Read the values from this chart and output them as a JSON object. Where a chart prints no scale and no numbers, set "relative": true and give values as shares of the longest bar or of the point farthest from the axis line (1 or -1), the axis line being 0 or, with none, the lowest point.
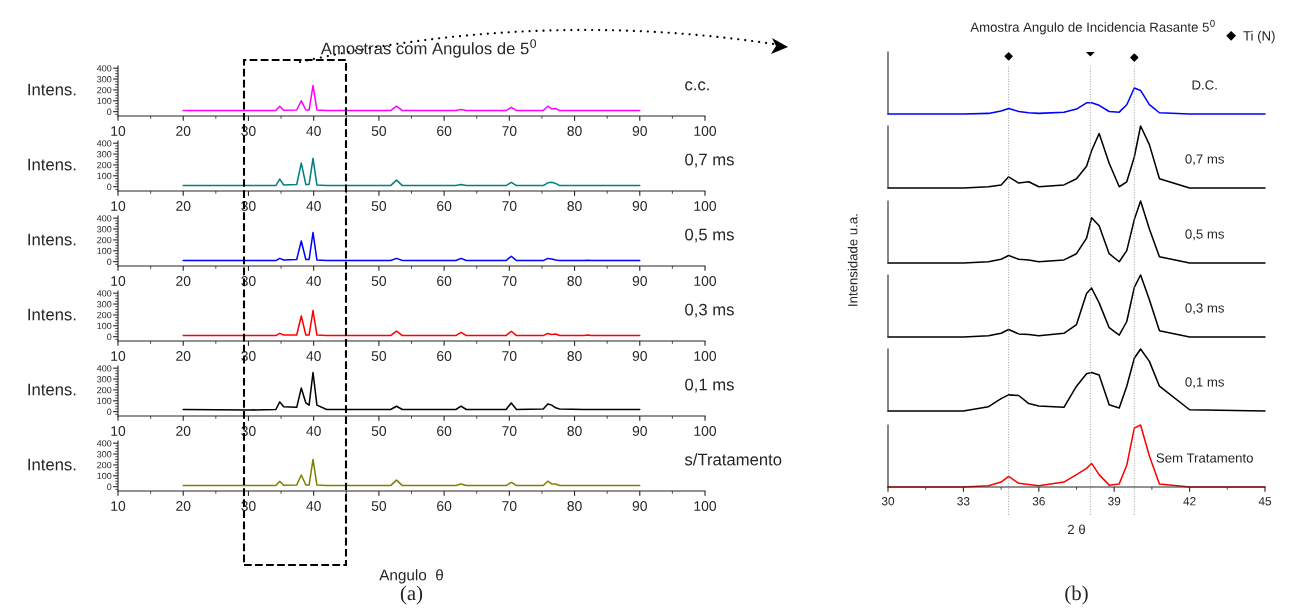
{
  "chart_data": [
    {
      "type": "line",
      "title": "Amostras com Angulos de 5$^{0}$",
      "ylabel": "Intens.",
      "xlim": [
        10,
        100
      ],
      "xticks": [
        10,
        20,
        30,
        40,
        50,
        60,
        70,
        80,
        90,
        100
      ],
      "ylim": [
        -40,
        420
      ],
      "yticks": [
        0,
        100,
        200,
        300,
        400
      ],
      "x": [
        20,
        30,
        34.2,
        34.8,
        35.4,
        37.4,
        38.1,
        38.8,
        39.3,
        39.9,
        40.5,
        42,
        51.8,
        52.7,
        53.6,
        61.8,
        62.6,
        63.4,
        69.5,
        70.3,
        71.1,
        75.2,
        75.9,
        76.5,
        77.1,
        77.7,
        81.4,
        82,
        82.6,
        90
      ],
      "series": [
        {
          "name": "c.c.",
          "color": "#ff00ff",
          "values": [
            10,
            10,
            10,
            50,
            12,
            15,
            100,
            15,
            15,
            240,
            15,
            10,
            10,
            50,
            10,
            10,
            20,
            10,
            10,
            40,
            10,
            10,
            50,
            25,
            30,
            10,
            10,
            10,
            10,
            10
          ]
        }
      ]
    },
    {
      "type": "line",
      "ylabel": "Intens.",
      "xlim": [
        10,
        100
      ],
      "xticks": [
        10,
        20,
        30,
        40,
        50,
        60,
        70,
        80,
        90,
        100
      ],
      "ylim": [
        -40,
        420
      ],
      "yticks": [
        0,
        100,
        200,
        300,
        400
      ],
      "x": [
        20,
        30,
        34.2,
        34.8,
        35.4,
        37.4,
        38.1,
        38.8,
        39.3,
        39.9,
        40.5,
        42,
        51.8,
        52.7,
        53.6,
        61.8,
        62.6,
        63.4,
        69.5,
        70.3,
        71.1,
        75.2,
        75.9,
        76.5,
        77.1,
        77.7,
        81.4,
        82,
        82.6,
        90
      ],
      "series": [
        {
          "name": "0,7 ms",
          "color": "#008080",
          "values": [
            10,
            10,
            10,
            70,
            15,
            20,
            217,
            20,
            20,
            260,
            15,
            10,
            10,
            60,
            10,
            10,
            20,
            10,
            10,
            40,
            10,
            10,
            35,
            40,
            30,
            10,
            10,
            10,
            10,
            10
          ]
        }
      ]
    },
    {
      "type": "line",
      "ylabel": "Intens.",
      "xlim": [
        10,
        100
      ],
      "xticks": [
        10,
        20,
        30,
        40,
        50,
        60,
        70,
        80,
        90,
        100
      ],
      "ylim": [
        -40,
        420
      ],
      "yticks": [
        0,
        100,
        200,
        300,
        400
      ],
      "x": [
        20,
        30,
        34.2,
        34.8,
        35.4,
        37.4,
        38.1,
        38.8,
        39.3,
        39.9,
        40.5,
        42,
        51.8,
        52.7,
        53.6,
        61.8,
        62.6,
        63.4,
        69.5,
        70.3,
        71.1,
        75.2,
        75.9,
        76.5,
        77.1,
        77.7,
        81.4,
        82,
        82.6,
        90
      ],
      "series": [
        {
          "name": "0,5 ms",
          "color": "#0000ff",
          "values": [
            10,
            10,
            10,
            30,
            15,
            20,
            190,
            20,
            20,
            267,
            15,
            10,
            10,
            30,
            10,
            10,
            30,
            10,
            10,
            50,
            10,
            10,
            30,
            25,
            15,
            10,
            10,
            12,
            10,
            10
          ]
        }
      ]
    },
    {
      "type": "line",
      "ylabel": "Intens.",
      "xlim": [
        10,
        100
      ],
      "xticks": [
        10,
        20,
        30,
        40,
        50,
        60,
        70,
        80,
        90,
        100
      ],
      "ylim": [
        -40,
        420
      ],
      "yticks": [
        0,
        100,
        200,
        300,
        400
      ],
      "x": [
        20,
        30,
        34.2,
        34.8,
        35.4,
        37.4,
        38.1,
        38.8,
        39.3,
        39.9,
        40.5,
        42,
        51.8,
        52.7,
        53.6,
        61.8,
        62.6,
        63.4,
        69.5,
        70.3,
        71.1,
        75.2,
        75.9,
        76.5,
        77.1,
        77.7,
        81.4,
        82,
        82.6,
        90
      ],
      "series": [
        {
          "name": "0,3 ms",
          "color": "#ff0000",
          "values": [
            10,
            10,
            10,
            30,
            15,
            15,
            190,
            15,
            15,
            240,
            15,
            10,
            10,
            50,
            10,
            10,
            40,
            10,
            10,
            50,
            10,
            10,
            30,
            20,
            25,
            10,
            10,
            15,
            10,
            10
          ]
        }
      ]
    },
    {
      "type": "line",
      "ylabel": "Intens.",
      "xlim": [
        10,
        100
      ],
      "xticks": [
        10,
        20,
        30,
        40,
        50,
        60,
        70,
        80,
        90,
        100
      ],
      "ylim": [
        -40,
        420
      ],
      "yticks": [
        0,
        100,
        200,
        300,
        400
      ],
      "x": [
        20,
        30,
        34.2,
        34.8,
        35.4,
        37.4,
        38.1,
        38.8,
        39.3,
        39.9,
        40.5,
        42,
        51.8,
        52.7,
        53.6,
        61.8,
        62.6,
        63.4,
        69.5,
        70.3,
        71.1,
        75.2,
        75.9,
        76.5,
        77.1,
        77.7,
        81.4,
        82,
        82.6,
        90
      ],
      "series": [
        {
          "name": "0,1 ms",
          "color": "#000000",
          "values": [
            20,
            15,
            20,
            90,
            45,
            40,
            217,
            80,
            60,
            360,
            60,
            20,
            20,
            50,
            20,
            20,
            50,
            20,
            20,
            80,
            20,
            25,
            70,
            60,
            35,
            25,
            20,
            20,
            20,
            20
          ]
        }
      ]
    },
    {
      "type": "line",
      "ylabel": "Intens.",
      "xlabel": "Angulo  θ",
      "xlim": [
        10,
        100
      ],
      "xticks": [
        10,
        20,
        30,
        40,
        50,
        60,
        70,
        80,
        90,
        100
      ],
      "ylim": [
        -40,
        420
      ],
      "yticks": [
        0,
        100,
        200,
        300,
        400
      ],
      "annotations": [
        "(a)"
      ],
      "x": [
        20,
        30,
        34.2,
        34.8,
        35.4,
        37.4,
        38.1,
        38.8,
        39.3,
        39.9,
        40.5,
        42,
        51.8,
        52.7,
        53.6,
        61.8,
        62.6,
        63.4,
        69.5,
        70.3,
        71.1,
        75.2,
        75.9,
        76.5,
        77.1,
        77.7,
        81.4,
        82,
        82.6,
        90
      ],
      "series": [
        {
          "name": "s/Tratamento",
          "color": "#808000",
          "values": [
            10,
            10,
            10,
            50,
            12,
            15,
            107,
            15,
            15,
            250,
            15,
            10,
            10,
            60,
            10,
            10,
            25,
            10,
            10,
            40,
            10,
            10,
            50,
            25,
            25,
            10,
            10,
            10,
            10,
            10
          ]
        }
      ]
    },
    {
      "type": "line",
      "title": "Amostra Angulo de Incidencia Rasante 5$^{0}$",
      "relative": true,
      "tick_labels": false,
      "xlim": [
        30,
        45
      ],
      "legend": "top right",
      "x": [
        30,
        33,
        34.0,
        34.5,
        34.8,
        35.2,
        35.6,
        36.0,
        37.0,
        37.5,
        37.9,
        38.1,
        38.4,
        38.8,
        39.2,
        39.5,
        39.8,
        40.05,
        40.4,
        40.8,
        42,
        45
      ],
      "series": [
        {
          "name": "D.C.",
          "color": "#0000ff",
          "values": [
            0,
            0,
            0.01,
            0.05,
            0.09,
            0.04,
            0.02,
            0.01,
            0.03,
            0.08,
            0.18,
            0.18,
            0.14,
            0.04,
            0.03,
            0.15,
            0.42,
            0.38,
            0.15,
            0.02,
            0,
            0
          ]
        },
        {
          "name": "Ti (N)",
          "type": "scatter",
          "marker": "diamond",
          "color": "#000000",
          "x": [
            34.8,
            38.05,
            39.8
          ],
          "values": [
            0.93,
            1,
            0.91
          ]
        }
      ]
    },
    {
      "type": "line",
      "relative": true,
      "tick_labels": false,
      "xlim": [
        30,
        45
      ],
      "x": [
        30,
        33,
        34.0,
        34.5,
        34.8,
        35.2,
        35.6,
        36.0,
        37.0,
        37.5,
        37.9,
        38.1,
        38.4,
        38.8,
        39.2,
        39.5,
        39.8,
        40.05,
        40.4,
        40.8,
        42,
        45
      ],
      "series": [
        {
          "name": "0,7 ms",
          "color": "#000000",
          "values": [
            0,
            0,
            0.02,
            0.05,
            0.18,
            0.08,
            0.1,
            0.02,
            0.05,
            0.15,
            0.35,
            0.6,
            0.88,
            0.4,
            0.02,
            0.1,
            0.5,
            1,
            0.7,
            0.15,
            0,
            0
          ]
        }
      ]
    },
    {
      "type": "line",
      "relative": true,
      "tick_labels": false,
      "xlim": [
        30,
        45
      ],
      "x": [
        30,
        33,
        34.0,
        34.5,
        34.8,
        35.2,
        35.6,
        36.0,
        37.0,
        37.5,
        37.9,
        38.1,
        38.4,
        38.8,
        39.2,
        39.5,
        39.8,
        40.05,
        40.4,
        40.8,
        42,
        45
      ],
      "series": [
        {
          "name": "0,5 ms",
          "color": "#000000",
          "values": [
            0,
            0,
            0.02,
            0.06,
            0.12,
            0.06,
            0.05,
            0.02,
            0.05,
            0.15,
            0.4,
            0.73,
            0.6,
            0.15,
            0.02,
            0.2,
            0.7,
            1,
            0.55,
            0.1,
            0,
            0
          ]
        }
      ]
    },
    {
      "type": "line",
      "relative": true,
      "tick_labels": false,
      "xlim": [
        30,
        45
      ],
      "ylabel": "Intensidade u.a.",
      "x": [
        30,
        33,
        34.0,
        34.5,
        34.8,
        35.2,
        35.6,
        36.0,
        37.0,
        37.5,
        37.9,
        38.1,
        38.4,
        38.8,
        39.2,
        39.5,
        39.8,
        40.05,
        40.4,
        40.8,
        42,
        45
      ],
      "series": [
        {
          "name": "0,3 ms",
          "color": "#000000",
          "values": [
            0,
            0,
            0.02,
            0.06,
            0.12,
            0.05,
            0.04,
            0.02,
            0.06,
            0.2,
            0.7,
            0.79,
            0.55,
            0.15,
            0.03,
            0.25,
            0.8,
            1,
            0.6,
            0.1,
            0,
            0
          ]
        }
      ]
    },
    {
      "type": "line",
      "relative": true,
      "tick_labels": false,
      "xlim": [
        30,
        45
      ],
      "x": [
        30,
        33,
        34.0,
        34.5,
        34.8,
        35.2,
        35.6,
        36.0,
        37.0,
        37.5,
        37.9,
        38.1,
        38.4,
        38.8,
        39.2,
        39.5,
        39.8,
        40.05,
        40.4,
        40.8,
        42,
        45
      ],
      "series": [
        {
          "name": "0,1 ms",
          "color": "#000000",
          "values": [
            0,
            0,
            0.07,
            0.2,
            0.26,
            0.25,
            0.12,
            0.08,
            0.06,
            0.4,
            0.6,
            0.62,
            0.58,
            0.1,
            0.05,
            0.4,
            0.85,
            1,
            0.8,
            0.4,
            0.02,
            0
          ]
        }
      ]
    },
    {
      "type": "line",
      "relative": true,
      "tick_labels": "x",
      "xlim": [
        30,
        45
      ],
      "xticks": [
        30,
        33,
        36,
        39,
        42,
        45
      ],
      "xlabel": "2 θ",
      "annotations": [
        "(b)"
      ],
      "ref_lines": [
        {
          "axis": "x",
          "value": 34.8,
          "line_style": "dotted",
          "color": "#999999"
        },
        {
          "axis": "x",
          "value": 38.05,
          "line_style": "dotted",
          "color": "#999999"
        },
        {
          "axis": "x",
          "value": 39.8,
          "line_style": "dotted",
          "color": "#999999"
        }
      ],
      "x": [
        30,
        33,
        34.0,
        34.5,
        34.8,
        35.2,
        35.6,
        36.0,
        37.0,
        37.5,
        37.9,
        38.1,
        38.4,
        38.8,
        39.2,
        39.5,
        39.8,
        40.05,
        40.4,
        40.8,
        42,
        45
      ],
      "series": [
        {
          "name": "Sem Tratamento",
          "color": "#ff0000",
          "values": [
            0,
            0,
            0.02,
            0.08,
            0.17,
            0.06,
            0.04,
            0.02,
            0.08,
            0.2,
            0.3,
            0.38,
            0.2,
            0.03,
            0.05,
            0.35,
            0.95,
            1,
            0.5,
            0.05,
            0,
            0
          ]
        }
      ]
    }
  ]
}
